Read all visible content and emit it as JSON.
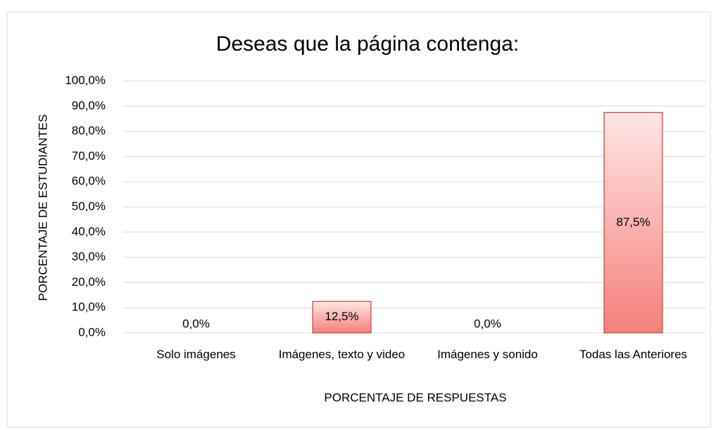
{
  "chart_data": {
    "type": "bar",
    "title": "Deseas que la página contenga:",
    "x_label": "PORCENTAJE DE RESPUESTAS",
    "y_label": "PORCENTAJE DE ESTUDIANTES",
    "categories": [
      "Solo imágenes",
      "Imágenes, texto y video",
      "Imágenes y sonido",
      "Todas las Anteriores"
    ],
    "values": [
      0,
      12.5,
      0,
      87.5
    ],
    "value_labels": [
      "0,0%",
      "12,5%",
      "0,0%",
      "87,5%"
    ],
    "color": "#f4817c",
    "ylim": [
      0,
      100
    ],
    "yticks": [
      {
        "value": 0,
        "label": "0,0%"
      },
      {
        "value": 10,
        "label": "10,0%"
      },
      {
        "value": 20,
        "label": "20,0%"
      },
      {
        "value": 30,
        "label": "30,0%"
      },
      {
        "value": 40,
        "label": "40,0%"
      },
      {
        "value": 50,
        "label": "50,0%"
      },
      {
        "value": 60,
        "label": "60,0%"
      },
      {
        "value": 70,
        "label": "70,0%"
      },
      {
        "value": 80,
        "label": "80,0%"
      },
      {
        "value": 90,
        "label": "90,0%"
      },
      {
        "value": 100,
        "label": "100,0%"
      }
    ],
    "grid": true
  }
}
